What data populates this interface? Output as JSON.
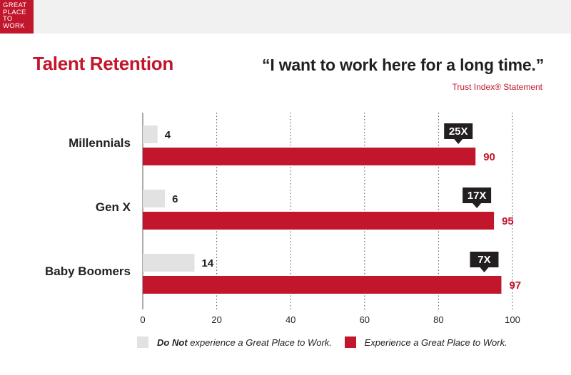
{
  "header": {
    "logo_lines": [
      "GREAT",
      "PLACE",
      "TO",
      "WORK"
    ]
  },
  "title": "Talent Retention",
  "quote": "“I want to work here for a long time.”",
  "source": "Trust Index® Statement",
  "colors": {
    "brand": "#c1162c",
    "not_gptw": "#e2e2e2",
    "callout": "#231f20"
  },
  "legend": {
    "not_gptw_bold": "Do Not",
    "not_gptw_rest": " experience a Great Place to Work.",
    "gptw": "Experience a Great Place to Work."
  },
  "chart_data": {
    "type": "bar",
    "orientation": "horizontal",
    "categories": [
      "Millennials",
      "Gen X",
      "Baby Boomers"
    ],
    "series": [
      {
        "name": "Do Not experience a Great Place to Work.",
        "values": [
          4,
          6,
          14
        ],
        "color": "#e2e2e2"
      },
      {
        "name": "Experience a Great Place to Work.",
        "values": [
          90,
          95,
          97
        ],
        "color": "#c1162c"
      }
    ],
    "callouts": [
      "25X",
      "17X",
      "7X"
    ],
    "xlim": [
      0,
      100
    ],
    "xticks": [
      0,
      20,
      40,
      60,
      80,
      100
    ],
    "grid": "vertical dotted",
    "legend_position": "bottom"
  }
}
